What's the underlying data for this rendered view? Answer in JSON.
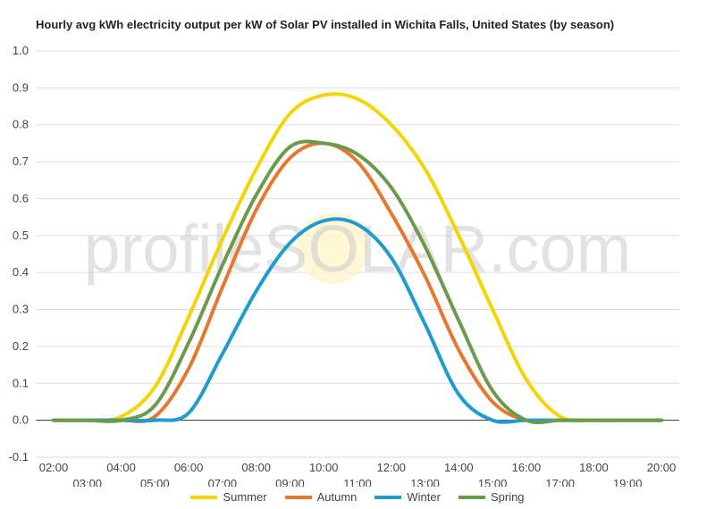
{
  "chart_data": {
    "type": "line",
    "title": "Hourly avg kWh electricity output per kW of Solar PV installed in Wichita Falls, United States (by season)",
    "x": [
      "02:00",
      "03:00",
      "04:00",
      "05:00",
      "06:00",
      "07:00",
      "08:00",
      "09:00",
      "10:00",
      "11:00",
      "12:00",
      "13:00",
      "14:00",
      "15:00",
      "16:00",
      "17:00",
      "18:00",
      "19:00",
      "20:00"
    ],
    "xlabel": "",
    "ylabel": "",
    "ylim": [
      -0.1,
      1.0
    ],
    "yticks": [
      "-0.1",
      "0.0",
      "0.1",
      "0.2",
      "0.3",
      "0.4",
      "0.5",
      "0.6",
      "0.7",
      "0.8",
      "0.9",
      "1.0"
    ],
    "grid": true,
    "legend_position": "bottom",
    "watermark": "profileSOLAR.com",
    "series": [
      {
        "name": "Summer",
        "color": "#f5d400",
        "values": [
          0,
          0,
          0.01,
          0.09,
          0.28,
          0.49,
          0.68,
          0.83,
          0.88,
          0.87,
          0.8,
          0.68,
          0.5,
          0.3,
          0.11,
          0.01,
          0,
          0,
          0
        ]
      },
      {
        "name": "Autumn",
        "color": "#e8772e",
        "values": [
          0,
          0,
          0,
          0.01,
          0.14,
          0.36,
          0.57,
          0.71,
          0.75,
          0.7,
          0.56,
          0.39,
          0.19,
          0.05,
          0,
          0,
          0,
          0,
          0
        ]
      },
      {
        "name": "Winter",
        "color": "#1f9bcf",
        "values": [
          0,
          0,
          0,
          0,
          0.02,
          0.18,
          0.35,
          0.48,
          0.54,
          0.53,
          0.44,
          0.26,
          0.07,
          0,
          0,
          0,
          0,
          0,
          0
        ]
      },
      {
        "name": "Spring",
        "color": "#6c9a4c",
        "values": [
          0,
          0,
          0,
          0.04,
          0.21,
          0.42,
          0.61,
          0.74,
          0.75,
          0.72,
          0.63,
          0.47,
          0.27,
          0.08,
          0,
          0,
          0,
          0,
          0
        ]
      }
    ]
  }
}
